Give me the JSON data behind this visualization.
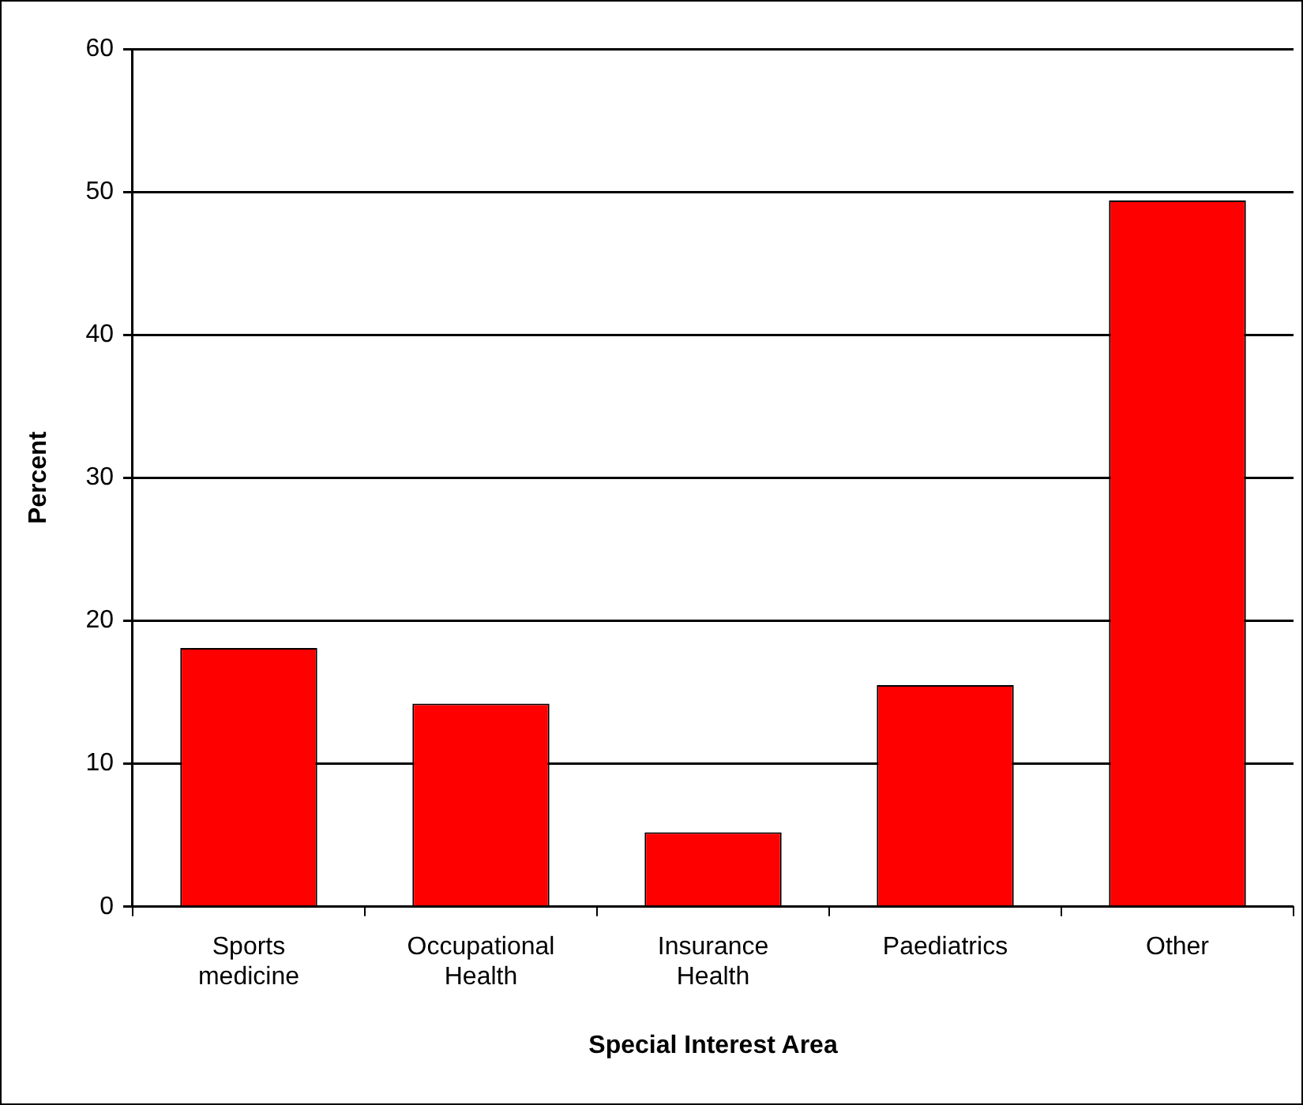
{
  "chart_data": {
    "type": "bar",
    "xlabel": "Special Interest Area",
    "ylabel": "Percent",
    "categories": [
      "Sports medicine",
      "Occupational Health",
      "Insurance Health",
      "Paediatrics",
      "Other"
    ],
    "values": [
      18.1,
      14.2,
      5.2,
      15.5,
      49.4
    ],
    "color": "#ff0000",
    "ylim": [
      0,
      60
    ],
    "yticks": [
      0,
      10,
      20,
      30,
      40,
      50,
      60
    ],
    "grid": "y",
    "legend": false
  }
}
